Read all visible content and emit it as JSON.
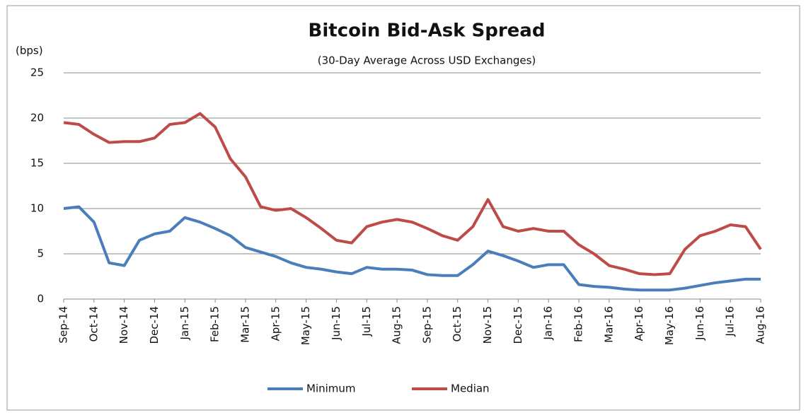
{
  "chart_data": {
    "type": "line",
    "title": "Bitcoin Bid-Ask Spread",
    "subtitle": "(30-Day Average  Across USD Exchanges)",
    "y_label": "(bps)",
    "categories": [
      "Sep-14",
      null,
      "Oct-14",
      null,
      "Nov-14",
      null,
      "Dec-14",
      null,
      "Jan-15",
      null,
      "Feb-15",
      null,
      "Mar-15",
      null,
      "Apr-15",
      null,
      "May-15",
      null,
      "Jun-15",
      null,
      "Jul-15",
      null,
      "Aug-15",
      null,
      "Sep-15",
      null,
      "Oct-15",
      null,
      "Nov-15",
      null,
      "Dec-15",
      null,
      "Jan-16",
      null,
      "Feb-16",
      null,
      "Mar-16",
      null,
      "Apr-16",
      null,
      "May-16",
      null,
      "Jun-16",
      null,
      "Jul-16",
      null,
      "Aug-16"
    ],
    "series": [
      {
        "name": "Minimum",
        "color": "#4a7ebb",
        "values": [
          10,
          10.2,
          8.5,
          4,
          3.7,
          6.5,
          7.2,
          7.5,
          9,
          8.5,
          7.8,
          7,
          5.7,
          5.2,
          4.7,
          4,
          3.5,
          3.3,
          3,
          2.8,
          3.5,
          3.3,
          3.3,
          3.2,
          2.7,
          2.6,
          2.6,
          3.8,
          5.3,
          4.8,
          4.2,
          3.5,
          3.8,
          3.8,
          1.6,
          1.4,
          1.3,
          1.1,
          1.0,
          1.0,
          1.0,
          1.2,
          1.5,
          1.8,
          2.0,
          2.2,
          2.2
        ]
      },
      {
        "name": "Median",
        "color": "#be4b48",
        "values": [
          19.5,
          19.3,
          18.2,
          17.3,
          17.4,
          17.4,
          17.8,
          19.3,
          19.5,
          20.5,
          19,
          15.5,
          13.5,
          10.2,
          9.8,
          10,
          9,
          7.8,
          6.5,
          6.2,
          8,
          8.5,
          8.8,
          8.5,
          7.8,
          7,
          6.5,
          8,
          11,
          8,
          7.5,
          7.8,
          7.5,
          7.5,
          6,
          5,
          3.7,
          3.3,
          2.8,
          2.7,
          2.8,
          5.5,
          7,
          7.5,
          8.2,
          8,
          5.5
        ]
      }
    ],
    "ylim": [
      0,
      25
    ],
    "yticks": [
      0,
      5,
      10,
      15,
      20,
      25
    ],
    "grid": true,
    "legend": "bottom"
  }
}
